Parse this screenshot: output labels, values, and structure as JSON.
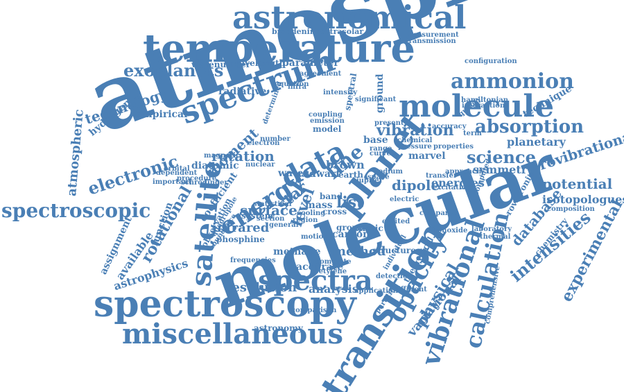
{
  "word_color": "#4a7fb5",
  "background": "#ffffff",
  "words": [
    "atmosphere",
    "molecular",
    "astronomical",
    "temperature",
    "spectroscopy",
    "miscellaneous",
    "transition",
    "spectrum",
    "molecule",
    "planet",
    "data",
    "absorption",
    "line",
    "energy",
    "satellite",
    "spectra",
    "exoplanets",
    "technology",
    "spectroscopic",
    "electronic",
    "vibrational",
    "calculation",
    "opacity",
    "ammonion",
    "science",
    "vibration",
    "rotation",
    "list",
    "dipole",
    "surface",
    "infrared",
    "method",
    "resolution",
    "analysis",
    "intensities",
    "experimental",
    "database",
    "potential",
    "rovibrational",
    "isotopologues",
    "symmetry",
    "planetary",
    "energies",
    "physical",
    "variational",
    "rotational",
    "available",
    "astrophysics",
    "assignment",
    "function",
    "atmospheric",
    "hydrogen",
    "empirical",
    "radiative",
    "parameter",
    "wavelength",
    "wavenumber",
    "broadening",
    "extrasolar",
    "measurement",
    "transmission",
    "configuration",
    "moment",
    "coefficient",
    "diatomic",
    "phosphine",
    "observation",
    "accurate",
    "acetylene",
    "methane",
    "carbon",
    "brown",
    "dwarf",
    "base",
    "ground",
    "marvel",
    "band",
    "star",
    "mass",
    "water",
    "astronomy",
    "technique",
    "chemistry",
    "rovibronic",
    "composition",
    "comprehensive",
    "theoretical",
    "partition",
    "structure",
    "jupiter",
    "physic",
    "level",
    "cross",
    "group",
    "frequencies",
    "motion",
    "section",
    "system",
    "statistical",
    "abundance",
    "earth",
    "chemical",
    "pressure",
    "present",
    "agreement",
    "equation",
    "intensity",
    "spectral",
    "coupling",
    "emission",
    "model",
    "number",
    "curve",
    "electric",
    "laboratory",
    "interaction",
    "hamiltonian",
    "accuracy",
    "range",
    "transfer",
    "approach",
    "excitation",
    "computed",
    "state",
    "dependent",
    "important",
    "procedure",
    "electron",
    "magnetic",
    "nuclear",
    "schrodinger",
    "quadrupole",
    "complete",
    "individual",
    "comparison",
    "application",
    "general",
    "cooling",
    "region",
    "excited",
    "determined",
    "detection",
    "monoxide",
    "space",
    "compared",
    "different",
    "significant",
    "quality",
    "thermal",
    "sodium",
    "infra",
    "term",
    "orbital",
    "properties",
    "ultraviolet"
  ]
}
